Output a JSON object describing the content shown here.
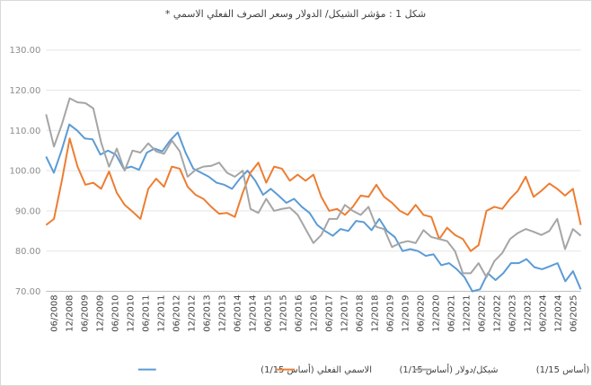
{
  "chart_data": {
    "type": "line",
    "title": "شكل 1 : مؤشر الشيكل/ الدولار وسعر الصرف الفعلي الاسمي *",
    "ylim": [
      70,
      130
    ],
    "yticks": [
      "130.00",
      "120.00",
      "110.00",
      "100.00",
      "90.00",
      "80.00",
      "70.00"
    ],
    "ytick_values": [
      130,
      120,
      110,
      100,
      90,
      80,
      70
    ],
    "grid": true,
    "legend_position": "bottom",
    "xticks": [
      "06/2008",
      "12/2008",
      "06/2009",
      "12/2009",
      "06/2010",
      "12/2010",
      "06/2011",
      "12/2011",
      "06/2012",
      "12/2012",
      "06/2013",
      "12/2013",
      "06/2014",
      "12/2014",
      "06/2015",
      "12/2015",
      "06/2016",
      "12/2016",
      "06/2017",
      "12/2017",
      "06/2018",
      "12/2018",
      "06/2019",
      "12/2019",
      "06/2020",
      "12/2020",
      "06/2021",
      "12/2021",
      "06/2022",
      "12/2022",
      "06/2023",
      "12/2023",
      "06/2024",
      "12/2024",
      "06/2025"
    ],
    "series": [
      {
        "name": "الاسمي الفعلي (أساس 1/15)",
        "color": "#5b9bd5",
        "values": [
          103.5,
          99.5,
          105.0,
          111.5,
          110.0,
          108.0,
          107.8,
          104.0,
          105.0,
          104.0,
          100.5,
          101.0,
          100.2,
          104.5,
          105.5,
          104.8,
          107.5,
          109.5,
          104.5,
          100.5,
          99.5,
          98.5,
          97.0,
          96.5,
          95.5,
          98.0,
          100.0,
          97.5,
          94.0,
          95.5,
          93.8,
          92.0,
          93.0,
          91.0,
          89.5,
          86.5,
          85.0,
          83.8,
          85.5,
          85.0,
          87.5,
          87.2,
          85.2,
          88.0,
          85.0,
          83.5,
          80.0,
          80.5,
          80.0,
          78.8,
          79.2,
          76.5,
          77.0,
          75.5,
          73.5,
          70.0,
          70.5,
          74.5,
          72.8,
          74.5,
          77.0,
          77.0,
          78.0,
          76.0,
          75.5,
          76.2,
          77.0,
          72.5,
          75.0,
          70.5
        ]
      },
      {
        "name": "شيكل/دولار (أساس 1/15)",
        "color": "#ed7d31",
        "values": [
          86.5,
          88.0,
          97.5,
          108.0,
          101.0,
          96.5,
          97.0,
          95.5,
          99.8,
          94.5,
          91.5,
          89.8,
          88.0,
          95.5,
          98.0,
          96.0,
          101.0,
          100.5,
          96.0,
          94.0,
          93.0,
          91.0,
          89.3,
          89.5,
          88.5,
          94.5,
          99.5,
          102.0,
          97.0,
          101.0,
          100.5,
          97.5,
          99.0,
          97.5,
          99.0,
          93.5,
          90.0,
          90.5,
          89.0,
          91.0,
          93.8,
          93.5,
          96.5,
          93.5,
          92.0,
          90.0,
          89.0,
          91.5,
          89.0,
          88.5,
          83.0,
          85.8,
          84.0,
          83.0,
          80.0,
          81.5,
          90.0,
          91.0,
          90.5,
          93.0,
          95.0,
          98.5,
          93.5,
          95.0,
          96.8,
          95.5,
          93.8,
          95.5,
          86.5
        ]
      },
      {
        "name": "شيكل/ يورو (أساس 1/15)",
        "color": "#a5a5a5",
        "values": [
          114.0,
          106.0,
          111.5,
          118.0,
          117.0,
          116.8,
          115.5,
          107.0,
          101.0,
          105.5,
          100.0,
          105.0,
          104.5,
          106.8,
          104.8,
          104.2,
          107.5,
          104.8,
          98.5,
          100.2,
          101.0,
          101.2,
          102.0,
          99.5,
          98.5,
          100.0,
          90.5,
          89.5,
          93.0,
          90.0,
          90.5,
          90.8,
          89.0,
          85.5,
          82.0,
          84.0,
          88.0,
          88.0,
          91.5,
          90.0,
          89.0,
          91.0,
          86.0,
          85.5,
          81.0,
          82.0,
          82.5,
          82.0,
          85.2,
          83.5,
          83.0,
          82.5,
          80.0,
          74.5,
          74.5,
          77.0,
          73.5,
          77.5,
          79.5,
          83.0,
          84.5,
          85.5,
          84.8,
          84.0,
          85.0,
          88.0,
          80.5,
          85.5,
          83.8
        ]
      }
    ]
  }
}
